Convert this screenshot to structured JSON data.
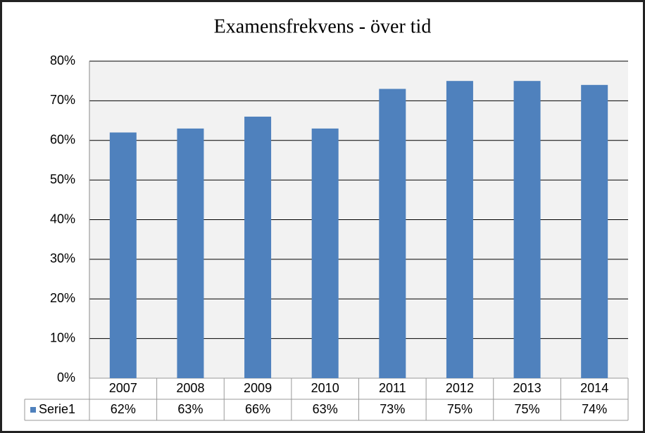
{
  "chart_data": {
    "type": "bar",
    "title": "Examensfrekvens - över tid",
    "categories": [
      "2007",
      "2008",
      "2009",
      "2010",
      "2011",
      "2012",
      "2013",
      "2014"
    ],
    "series": [
      {
        "name": "Serie1",
        "color": "#4f81bd",
        "values": [
          62,
          63,
          66,
          63,
          73,
          75,
          75,
          74
        ],
        "value_labels": [
          "62%",
          "63%",
          "66%",
          "63%",
          "73%",
          "75%",
          "75%",
          "74%"
        ]
      }
    ],
    "ylim": [
      0,
      80
    ],
    "yticks": [
      {
        "value": 0,
        "label": "0%"
      },
      {
        "value": 10,
        "label": "10%"
      },
      {
        "value": 20,
        "label": "20%"
      },
      {
        "value": 30,
        "label": "30%"
      },
      {
        "value": 40,
        "label": "40%"
      },
      {
        "value": 50,
        "label": "50%"
      },
      {
        "value": 60,
        "label": "60%"
      },
      {
        "value": 70,
        "label": "70%"
      },
      {
        "value": 80,
        "label": "80%"
      }
    ],
    "grid": true
  }
}
